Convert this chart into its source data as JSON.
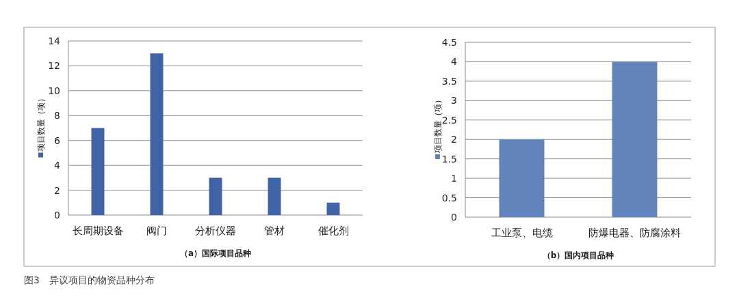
{
  "chart_data": [
    {
      "type": "bar",
      "xlabel": "（a）国际项目品种",
      "categories": [
        "长周期设备",
        "阀门",
        "分析仪器",
        "管材",
        "催化剂"
      ],
      "series": [
        {
          "name": "项目数量（项）",
          "color": "#3f63a6",
          "values": [
            7,
            13,
            3,
            3,
            1
          ]
        }
      ],
      "ylim": [
        0,
        14
      ],
      "yticks": [
        0,
        2,
        4,
        6,
        8,
        10,
        12,
        14
      ],
      "grid": "y",
      "legend": "left",
      "annotations": [
        "图3　异议项目的物资品种分布"
      ]
    },
    {
      "type": "bar",
      "xlabel": "（b）国内项目品种",
      "categories": [
        "工业泵、电缆",
        "防爆电器、防腐涂料"
      ],
      "series": [
        {
          "name": "项目数量（项）",
          "color": "#6283bb",
          "values": [
            2,
            4
          ]
        }
      ],
      "ylim": [
        0,
        4.5
      ],
      "yticks": [
        0,
        0.5,
        1,
        1.5,
        2,
        2.5,
        3,
        3.5,
        4,
        4.5
      ],
      "grid": "y",
      "legend": "left"
    }
  ]
}
